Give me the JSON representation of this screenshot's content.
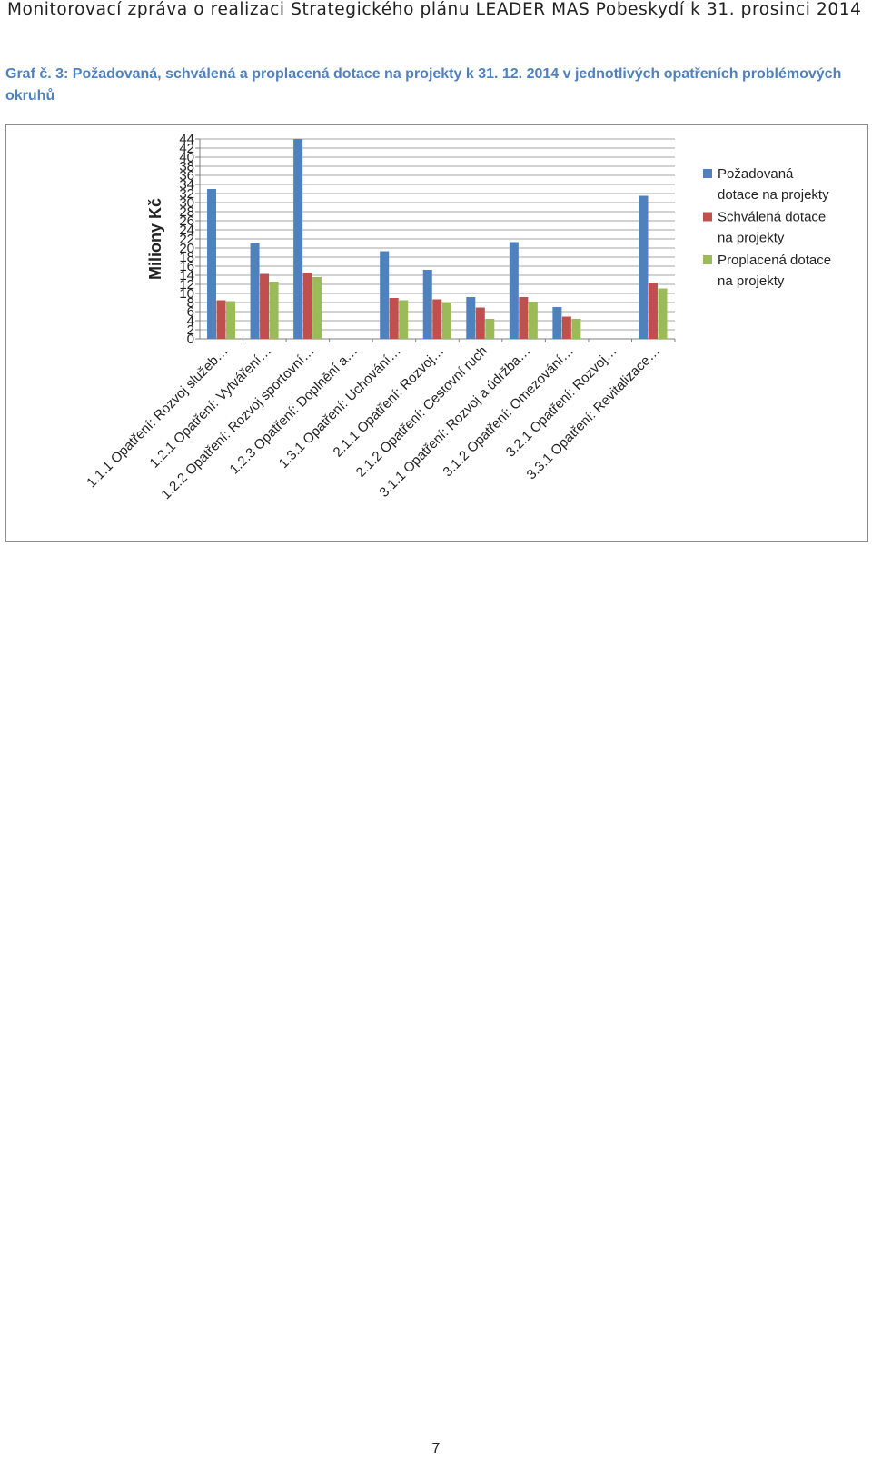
{
  "header": {
    "running_title": "Monitorovací zpráva o realizaci Strategického plánu LEADER MAS Pobeskydí k 31. prosinci 2014"
  },
  "caption": "Graf č. 3: Požadovaná, schválená a proplacená dotace na projekty k 31. 12. 2014 v jednotlivých opatřeních problémových okruhů",
  "page_number": "7",
  "chart_data": {
    "type": "bar",
    "title": "",
    "ylabel": "Miliony Kč",
    "xlabel": "",
    "ylim": [
      0,
      44
    ],
    "yticks": [
      0,
      2,
      4,
      6,
      8,
      10,
      12,
      14,
      16,
      18,
      20,
      22,
      24,
      26,
      28,
      30,
      32,
      34,
      36,
      38,
      40,
      42,
      44
    ],
    "grid": true,
    "legend_position": "right",
    "categories": [
      "1.1.1 Opatření: Rozvoj služeb…",
      "1.2.1 Opatření: Vytváření…",
      "1.2.2 Opatření: Rozvoj sportovní…",
      "1.2.3 Opatření: Doplnění a…",
      "1.3.1 Opatření: Uchování…",
      "2.1.1 Opatření: Rozvoj…",
      "2.1.2 Opatření: Cestovní ruch",
      "3.1.1 Opatření: Rozvoj a údržba…",
      "3.1.2 Opatření: Omezování…",
      "3.2.1 Opatření: Rozvoj…",
      "3.3.1 Opatření: Revitalizace…"
    ],
    "series": [
      {
        "name": "Požadovaná dotace na projekty",
        "color": "#4f81bd",
        "values": [
          33,
          21,
          44,
          0,
          19.3,
          15.2,
          9.2,
          21.3,
          7.0,
          0,
          31.5
        ]
      },
      {
        "name": "Schválená dotace na projekty",
        "color": "#c0504d",
        "values": [
          8.5,
          14.3,
          14.6,
          0,
          9.0,
          8.7,
          6.9,
          9.2,
          4.9,
          0,
          12.3
        ]
      },
      {
        "name": "Proplacená dotace na projekty",
        "color": "#9bbb59",
        "values": [
          8.3,
          12.6,
          13.6,
          0,
          8.5,
          8.1,
          4.4,
          8.2,
          4.4,
          0,
          11.1
        ]
      }
    ]
  }
}
